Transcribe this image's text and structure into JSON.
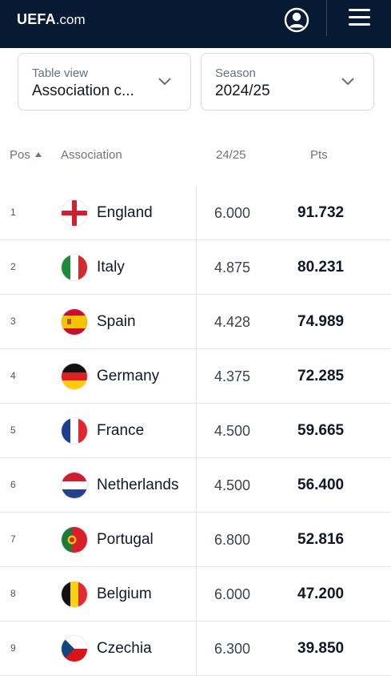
{
  "header": {
    "logo_bold": "UEFA",
    "logo_light": ".com"
  },
  "filters": {
    "table_view": {
      "label": "Table view",
      "value": "Association c..."
    },
    "season": {
      "label": "Season",
      "value": "2024/25"
    }
  },
  "table": {
    "columns": {
      "pos": "Pos",
      "association": "Association",
      "season": "24/25",
      "pts": "Pts"
    },
    "rows": [
      {
        "pos": "1",
        "name": "England",
        "season": "6.000",
        "pts": "91.732",
        "flag": "england-flag-icon"
      },
      {
        "pos": "2",
        "name": "Italy",
        "season": "4.875",
        "pts": "80.231",
        "flag": "italy-flag-icon"
      },
      {
        "pos": "3",
        "name": "Spain",
        "season": "4.428",
        "pts": "74.989",
        "flag": "spain-flag-icon"
      },
      {
        "pos": "4",
        "name": "Germany",
        "season": "4.375",
        "pts": "72.285",
        "flag": "germany-flag-icon"
      },
      {
        "pos": "5",
        "name": "France",
        "season": "4.500",
        "pts": "59.665",
        "flag": "france-flag-icon"
      },
      {
        "pos": "6",
        "name": "Netherlands",
        "season": "4.500",
        "pts": "56.400",
        "flag": "netherlands-flag-icon"
      },
      {
        "pos": "7",
        "name": "Portugal",
        "season": "6.800",
        "pts": "52.816",
        "flag": "portugal-flag-icon"
      },
      {
        "pos": "8",
        "name": "Belgium",
        "season": "6.000",
        "pts": "47.200",
        "flag": "belgium-flag-icon"
      },
      {
        "pos": "9",
        "name": "Czechia",
        "season": "6.300",
        "pts": "39.850",
        "flag": "czechia-flag-icon"
      }
    ]
  },
  "colors": {
    "header_bg": "#071a33",
    "border": "#e3e6ea"
  }
}
